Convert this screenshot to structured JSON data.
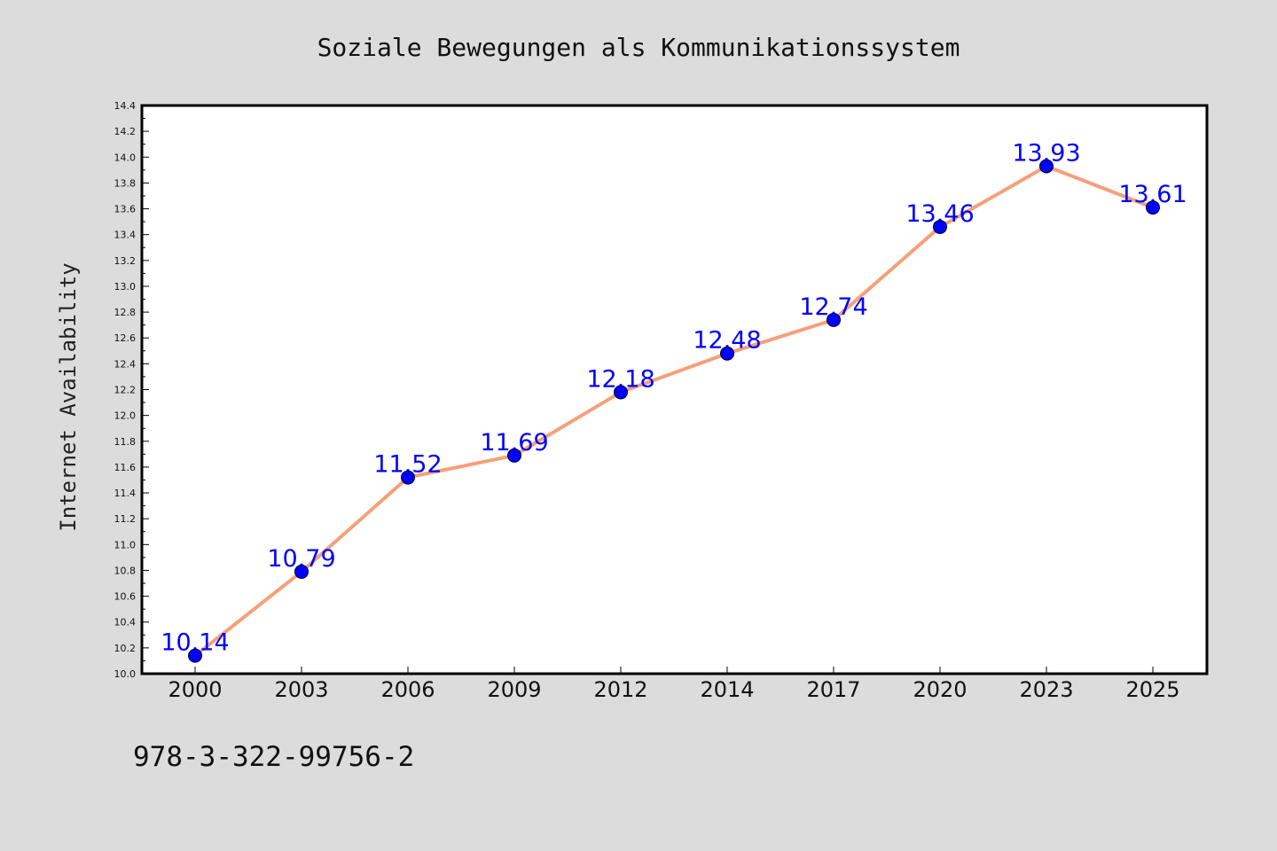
{
  "chart_data": {
    "type": "line",
    "title": "Soziale Bewegungen als Kommunikationssystem",
    "xlabel": "",
    "ylabel": "Internet Availability",
    "categories": [
      "2000",
      "2003",
      "2006",
      "2009",
      "2012",
      "2014",
      "2017",
      "2020",
      "2023",
      "2025"
    ],
    "series": [
      {
        "values": [
          10.14,
          10.79,
          11.52,
          11.69,
          12.18,
          12.48,
          12.74,
          13.46,
          13.93,
          13.61
        ],
        "data_labels": [
          "10.14",
          "10.79",
          "11.52",
          "11.69",
          "12.18",
          "12.48",
          "12.74",
          "13.46",
          "13.93",
          "13.61"
        ],
        "line_color": "#f5a07a",
        "marker_color": "#0000ff"
      }
    ],
    "ylim": [
      10.0,
      14.4
    ],
    "yticks": [
      "10.0",
      "10.2",
      "10.4",
      "10.6",
      "10.8",
      "11.0",
      "11.2",
      "11.4",
      "11.6",
      "11.8",
      "12.0",
      "12.2",
      "12.4",
      "12.6",
      "12.8",
      "13.0",
      "13.2",
      "13.4",
      "13.6",
      "13.8",
      "14.0",
      "14.2",
      "14.4"
    ],
    "grid": false,
    "legend": "none"
  },
  "footer": {
    "text": "978-3-322-99756-2"
  },
  "colors": {
    "page_background": "#dcdcdc",
    "plot_background": "#ffffff",
    "axis_color": "#000000"
  }
}
